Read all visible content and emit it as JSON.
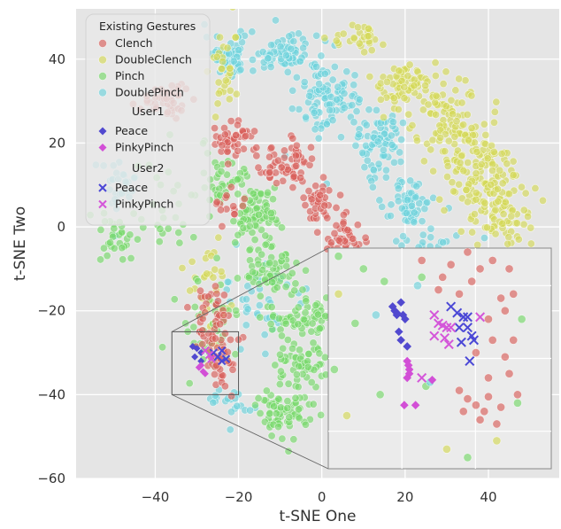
{
  "chart_data": {
    "type": "scatter",
    "title": "",
    "xlabel": "t-SNE One",
    "ylabel": "t-SNE Two",
    "xlim": [
      -59,
      57
    ],
    "ylim": [
      -60,
      52
    ],
    "xticks": [
      -40,
      -20,
      0,
      20,
      40
    ],
    "yticks": [
      -60,
      -40,
      -20,
      0,
      20,
      40
    ],
    "x_tick_labels": [
      "−40",
      "−20",
      "0",
      "20",
      "40"
    ],
    "y_tick_labels": [
      "−60",
      "−40",
      "−20",
      "0",
      "20",
      "40"
    ],
    "grid": true,
    "legend_placement": "top-left",
    "legend": {
      "title": "Existing Gestures",
      "user1_title": "User1",
      "user2_title": "User2",
      "entries": [
        {
          "label": "Clench",
          "color": "#d9605a",
          "marker": "circle"
        },
        {
          "label": "DoubleClench",
          "color": "#d4d957",
          "marker": "circle"
        },
        {
          "label": "Pinch",
          "color": "#76d86a",
          "marker": "circle"
        },
        {
          "label": "DoublePinch",
          "color": "#6fd3dc",
          "marker": "circle"
        }
      ],
      "user1_entries": [
        {
          "label": "Peace",
          "color": "#5149cf",
          "marker": "diamond"
        },
        {
          "label": "PinkyPinch",
          "color": "#d24fd6",
          "marker": "diamond"
        }
      ],
      "user2_entries": [
        {
          "label": "Peace",
          "color": "#4b48d6",
          "marker": "x"
        },
        {
          "label": "PinkyPinch",
          "color": "#d456d9",
          "marker": "x"
        }
      ]
    },
    "colors": {
      "Clench": "#d9605a",
      "DoubleClench": "#d4d957",
      "Pinch": "#76d86a",
      "DoublePinch": "#6fd3dc",
      "User1 Peace": "#5149cf",
      "User1 PinkyPinch": "#d24fd6",
      "User2 Peace": "#4b48d6",
      "User2 PinkyPinch": "#d456d9"
    },
    "clusters": [
      {
        "series": "DoublePinch",
        "cx": -22,
        "cy": 41,
        "sx": 3,
        "sy": 2.5,
        "n": 60
      },
      {
        "series": "DoublePinch",
        "cx": -9,
        "cy": 41,
        "sx": 4,
        "sy": 2.5,
        "n": 70
      },
      {
        "series": "DoublePinch",
        "cx": 2,
        "cy": 31,
        "sx": 4,
        "sy": 4,
        "n": 100
      },
      {
        "series": "DoublePinch",
        "cx": 14,
        "cy": 20,
        "sx": 3,
        "sy": 4,
        "n": 80
      },
      {
        "series": "DoublePinch",
        "cx": 21,
        "cy": 5,
        "sx": 3,
        "sy": 3,
        "n": 60
      },
      {
        "series": "DoublePinch",
        "cx": -49,
        "cy": 10,
        "sx": 3,
        "sy": 3,
        "n": 30
      },
      {
        "series": "DoublePinch",
        "cx": -14,
        "cy": -18,
        "sx": 5,
        "sy": 6,
        "n": 40
      },
      {
        "series": "DoublePinch",
        "cx": -22,
        "cy": -42,
        "sx": 3,
        "sy": 2,
        "n": 20
      },
      {
        "series": "DoublePinch",
        "cx": 28,
        "cy": -5,
        "sx": 6,
        "sy": 2,
        "n": 20
      },
      {
        "series": "DoubleClench",
        "cx": 8,
        "cy": 45,
        "sx": 3,
        "sy": 2,
        "n": 30
      },
      {
        "series": "DoubleClench",
        "cx": 20,
        "cy": 34,
        "sx": 4,
        "sy": 3,
        "n": 70
      },
      {
        "series": "DoubleClench",
        "cx": 31,
        "cy": 25,
        "sx": 4,
        "sy": 5,
        "n": 100
      },
      {
        "series": "DoubleClench",
        "cx": 38,
        "cy": 12,
        "sx": 4,
        "sy": 5,
        "n": 110
      },
      {
        "series": "DoubleClench",
        "cx": 44,
        "cy": 2,
        "sx": 4,
        "sy": 4,
        "n": 60
      },
      {
        "series": "DoubleClench",
        "cx": -23,
        "cy": 38,
        "sx": 2,
        "sy": 5,
        "n": 30
      },
      {
        "series": "DoubleClench",
        "cx": -28,
        "cy": -15,
        "sx": 3,
        "sy": 6,
        "n": 30
      },
      {
        "series": "DoubleClench",
        "cx": 28,
        "cy": -35,
        "sx": 8,
        "sy": 10,
        "n": 25
      },
      {
        "series": "Pinch",
        "cx": -16,
        "cy": 3,
        "sx": 3,
        "sy": 3,
        "n": 80
      },
      {
        "series": "Pinch",
        "cx": -24,
        "cy": 11,
        "sx": 2.5,
        "sy": 3,
        "n": 40
      },
      {
        "series": "Pinch",
        "cx": -12,
        "cy": -10,
        "sx": 3,
        "sy": 3,
        "n": 60
      },
      {
        "series": "Pinch",
        "cx": -5,
        "cy": -22,
        "sx": 4,
        "sy": 3,
        "n": 70
      },
      {
        "series": "Pinch",
        "cx": -9,
        "cy": -44,
        "sx": 3,
        "sy": 3,
        "n": 70
      },
      {
        "series": "Pinch",
        "cx": -5,
        "cy": -32,
        "sx": 3,
        "sy": 3,
        "n": 50
      },
      {
        "series": "Pinch",
        "cx": -50,
        "cy": -2,
        "sx": 3,
        "sy": 3,
        "n": 30
      },
      {
        "series": "Pinch",
        "cx": -35,
        "cy": 5,
        "sx": 8,
        "sy": 8,
        "n": 30
      },
      {
        "series": "Pinch",
        "cx": -28,
        "cy": -25,
        "sx": 4,
        "sy": 6,
        "n": 40
      },
      {
        "series": "Pinch",
        "cx": 20,
        "cy": -30,
        "sx": 12,
        "sy": 10,
        "n": 20
      },
      {
        "series": "Clench",
        "cx": -37,
        "cy": 30,
        "sx": 4,
        "sy": 2,
        "n": 50
      },
      {
        "series": "Clench",
        "cx": -20,
        "cy": 21,
        "sx": 3,
        "sy": 2,
        "n": 50
      },
      {
        "series": "Clench",
        "cx": -8,
        "cy": 15,
        "sx": 3,
        "sy": 2.5,
        "n": 60
      },
      {
        "series": "Clench",
        "cx": 0,
        "cy": 6,
        "sx": 2,
        "sy": 2.5,
        "n": 40
      },
      {
        "series": "Clench",
        "cx": 6,
        "cy": -3,
        "sx": 2.5,
        "sy": 2,
        "n": 40
      },
      {
        "series": "Clench",
        "cx": -27,
        "cy": -22,
        "sx": 2,
        "sy": 4,
        "n": 40
      },
      {
        "series": "Clench",
        "cx": -24,
        "cy": -31,
        "sx": 2,
        "sy": 4,
        "n": 40
      },
      {
        "series": "Clench",
        "cx": -22,
        "cy": 5,
        "sx": 2,
        "sy": 2,
        "n": 15
      }
    ],
    "new_gestures": [
      {
        "series": "User1 Peace",
        "marker": "diamond",
        "points": [
          [
            -30,
            -29
          ],
          [
            -29,
            -30
          ],
          [
            -30.5,
            -31
          ],
          [
            -29,
            -32
          ],
          [
            -31,
            -28.5
          ]
        ]
      },
      {
        "series": "User1 PinkyPinch",
        "marker": "diamond",
        "points": [
          [
            -29,
            -33
          ],
          [
            -28,
            -35
          ],
          [
            -28.5,
            -34.5
          ],
          [
            -29.5,
            -33.5
          ]
        ]
      },
      {
        "series": "User2 Peace",
        "marker": "x",
        "points": [
          [
            -26,
            -30
          ],
          [
            -25,
            -31
          ],
          [
            -24,
            -29.5
          ],
          [
            -23,
            -31.5
          ],
          [
            -24,
            -32
          ]
        ]
      },
      {
        "series": "User2 PinkyPinch",
        "marker": "x",
        "points": [
          [
            -27,
            -30.5
          ],
          [
            -26.5,
            -31.5
          ],
          [
            -28,
            -29.5
          ]
        ]
      }
    ],
    "inset": {
      "xlim": [
        -36,
        -20
      ],
      "ylim": [
        -40,
        -25
      ],
      "points": [
        {
          "series": "User1 Peace",
          "marker": "diamond",
          "xy": [
            [
              19,
              -18
            ],
            [
              17,
              -19
            ],
            [
              17.5,
              -20
            ],
            [
              18,
              -20.5
            ],
            [
              18,
              -21
            ],
            [
              19.5,
              -21
            ],
            [
              20,
              -22
            ],
            [
              18.5,
              -25
            ],
            [
              19,
              -27
            ],
            [
              20.5,
              -28.5
            ]
          ]
        },
        {
          "series": "User1 PinkyPinch",
          "marker": "diamond",
          "xy": [
            [
              20.5,
              -32
            ],
            [
              20.8,
              -33
            ],
            [
              21,
              -34
            ],
            [
              20.5,
              -36
            ],
            [
              21,
              -35
            ],
            [
              19.8,
              -42.5
            ],
            [
              22.5,
              -42.5
            ],
            [
              26.5,
              -36.5
            ]
          ]
        },
        {
          "series": "User2 Peace",
          "marker": "x",
          "xy": [
            [
              31,
              -19
            ],
            [
              32.5,
              -20.5
            ],
            [
              34,
              -21.5
            ],
            [
              35,
              -21.5
            ],
            [
              33,
              -24
            ],
            [
              35,
              -24
            ],
            [
              36,
              -26
            ],
            [
              33.5,
              -27.5
            ],
            [
              36.5,
              -27
            ],
            [
              35.5,
              -32
            ]
          ]
        },
        {
          "series": "User2 PinkyPinch",
          "marker": "x",
          "xy": [
            [
              27,
              -21
            ],
            [
              28,
              -23
            ],
            [
              29,
              -23.5
            ],
            [
              30,
              -24
            ],
            [
              31,
              -24
            ],
            [
              29.5,
              -26.5
            ],
            [
              30.5,
              -28
            ],
            [
              27,
              -26
            ],
            [
              38,
              -21.5
            ],
            [
              24,
              -36
            ]
          ]
        },
        {
          "series": "Clench",
          "marker": "circle",
          "xy": [
            [
              33,
              -39
            ],
            [
              35,
              -41
            ],
            [
              37,
              -42.5
            ],
            [
              40,
              -40.5
            ],
            [
              43,
              -43
            ],
            [
              42,
              -47
            ],
            [
              38,
              -46
            ],
            [
              34,
              -44
            ],
            [
              40,
              -36
            ],
            [
              45,
              -35
            ],
            [
              44,
              -31
            ],
            [
              46,
              -27
            ],
            [
              41,
              -27
            ],
            [
              37,
              -30
            ],
            [
              44,
              -20
            ],
            [
              40,
              -22
            ],
            [
              29,
              -12
            ],
            [
              36,
              -13
            ],
            [
              43,
              -17
            ],
            [
              46,
              -16
            ],
            [
              31,
              -9
            ],
            [
              38,
              -10
            ],
            [
              45,
              -10
            ],
            [
              24,
              -8
            ],
            [
              35,
              -6
            ],
            [
              41,
              -8
            ],
            [
              28,
              -15
            ],
            [
              33,
              -16
            ],
            [
              47,
              -40
            ],
            [
              39,
              -44
            ]
          ]
        },
        {
          "series": "Pinch",
          "marker": "circle",
          "xy": [
            [
              4,
              -7
            ],
            [
              15,
              -13
            ],
            [
              8,
              -23
            ],
            [
              3,
              -34
            ],
            [
              14,
              -40
            ],
            [
              25,
              -38
            ],
            [
              24,
              -12
            ],
            [
              10,
              -10
            ],
            [
              47,
              -42
            ],
            [
              35,
              -55
            ],
            [
              48,
              -22
            ]
          ]
        },
        {
          "series": "DoubleClench",
          "marker": "circle",
          "xy": [
            [
              4,
              -16
            ],
            [
              30,
              -53
            ],
            [
              42,
              -51
            ],
            [
              6,
              -45
            ]
          ]
        },
        {
          "series": "DoublePinch",
          "marker": "circle",
          "xy": [
            [
              23,
              -14
            ],
            [
              26,
              -37
            ],
            [
              13,
              -21
            ]
          ]
        }
      ]
    }
  }
}
